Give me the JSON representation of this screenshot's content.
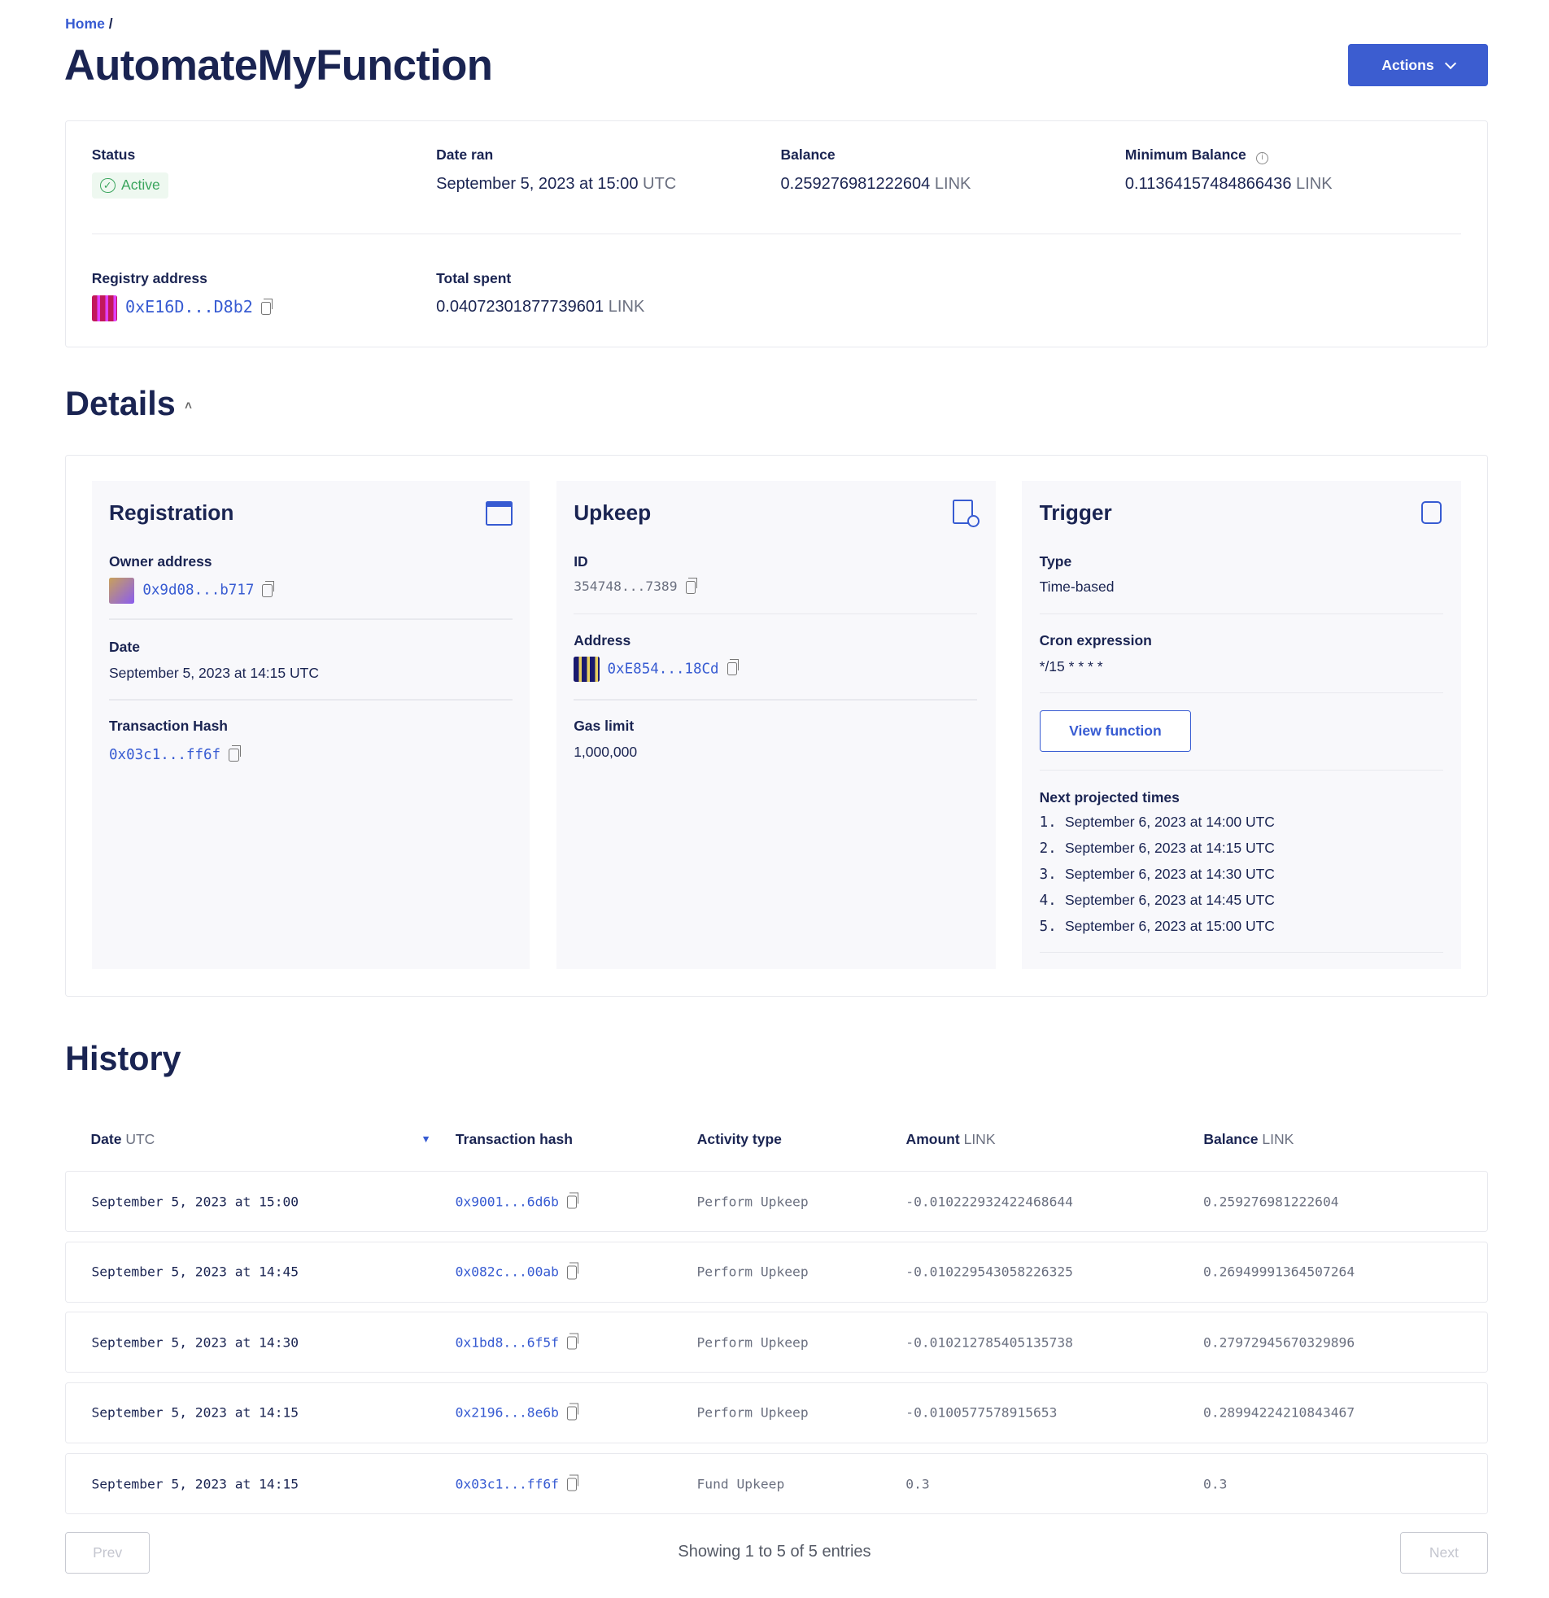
{
  "breadcrumb": {
    "home": "Home",
    "separator": "/"
  },
  "title": "AutomateMyFunction",
  "actions_label": "Actions",
  "colors": {
    "accent": "#375bd2",
    "navy": "#1a2452",
    "success": "#3aa55d"
  },
  "summary": {
    "status_label": "Status",
    "status_value": "Active",
    "date_ran_label": "Date ran",
    "date_ran_value": "September 5, 2023 at 15:00",
    "date_ran_unit": "UTC",
    "balance_label": "Balance",
    "balance_value": "0.259276981222604",
    "balance_unit": "LINK",
    "min_balance_label": "Minimum Balance",
    "min_balance_value": "0.11364157484866436",
    "min_balance_unit": "LINK",
    "registry_label": "Registry address",
    "registry_value": "0xE16D...D8b2",
    "total_spent_label": "Total spent",
    "total_spent_value": "0.04072301877739601",
    "total_spent_unit": "LINK"
  },
  "details": {
    "heading": "Details",
    "registration": {
      "title": "Registration",
      "owner_label": "Owner address",
      "owner_value": "0x9d08...b717",
      "date_label": "Date",
      "date_value": "September 5, 2023 at 14:15 UTC",
      "tx_label": "Transaction Hash",
      "tx_value": "0x03c1...ff6f"
    },
    "upkeep": {
      "title": "Upkeep",
      "id_label": "ID",
      "id_value": "354748...7389",
      "address_label": "Address",
      "address_value": "0xE854...18Cd",
      "gas_label": "Gas limit",
      "gas_value": "1,000,000"
    },
    "trigger": {
      "title": "Trigger",
      "type_label": "Type",
      "type_value": "Time-based",
      "cron_label": "Cron expression",
      "cron_value": "*/15 * * * *",
      "view_function": "View function",
      "next_label": "Next projected times",
      "times": [
        {
          "n": "1.",
          "t": "September 6, 2023 at 14:00 UTC"
        },
        {
          "n": "2.",
          "t": "September 6, 2023 at 14:15 UTC"
        },
        {
          "n": "3.",
          "t": "September 6, 2023 at 14:30 UTC"
        },
        {
          "n": "4.",
          "t": "September 6, 2023 at 14:45 UTC"
        },
        {
          "n": "5.",
          "t": "September 6, 2023 at 15:00 UTC"
        }
      ]
    }
  },
  "history": {
    "heading": "History",
    "columns": [
      {
        "label": "Date",
        "unit": "UTC"
      },
      {
        "label": "Transaction hash",
        "unit": ""
      },
      {
        "label": "Activity type",
        "unit": ""
      },
      {
        "label": "Amount",
        "unit": "LINK"
      },
      {
        "label": "Balance",
        "unit": "LINK"
      }
    ],
    "rows": [
      {
        "date": "September 5, 2023 at 15:00",
        "hash": "0x9001...6d6b",
        "type": "Perform Upkeep",
        "amount": "-0.010222932422468644",
        "balance": "0.259276981222604"
      },
      {
        "date": "September 5, 2023 at 14:45",
        "hash": "0x082c...00ab",
        "type": "Perform Upkeep",
        "amount": "-0.010229543058226325",
        "balance": "0.26949991364507264"
      },
      {
        "date": "September 5, 2023 at 14:30",
        "hash": "0x1bd8...6f5f",
        "type": "Perform Upkeep",
        "amount": "-0.010212785405135738",
        "balance": "0.27972945670329896"
      },
      {
        "date": "September 5, 2023 at 14:15",
        "hash": "0x2196...8e6b",
        "type": "Perform Upkeep",
        "amount": "-0.0100577578915653",
        "balance": "0.28994224210843467"
      },
      {
        "date": "September 5, 2023 at 14:15",
        "hash": "0x03c1...ff6f",
        "type": "Fund Upkeep",
        "amount": "0.3",
        "balance": "0.3"
      }
    ],
    "prev": "Prev",
    "next": "Next",
    "showing": "Showing 1 to 5 of 5 entries"
  }
}
